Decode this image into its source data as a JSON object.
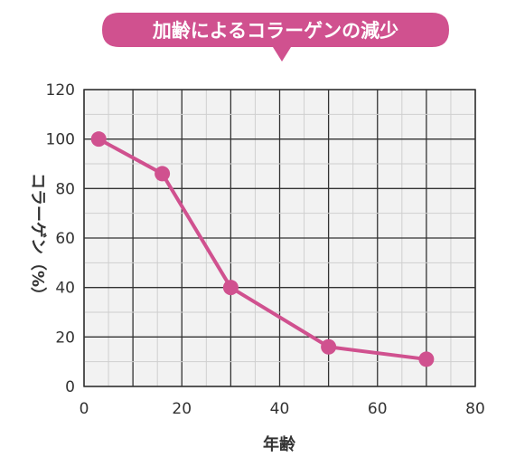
{
  "chart_data": {
    "type": "line",
    "title": "加齢によるコラーゲンの減少",
    "xlabel": "年齢",
    "ylabel": "コラーゲン（%）",
    "xlim": [
      0,
      80
    ],
    "ylim": [
      0,
      120
    ],
    "x_ticks": [
      "0",
      "20",
      "40",
      "60",
      "80"
    ],
    "y_ticks": [
      "0",
      "20",
      "40",
      "60",
      "80",
      "100",
      "120"
    ],
    "grid": true,
    "colors": {
      "line": "#d0518f",
      "marker": "#d0518f",
      "title_bg": "#d0518f",
      "grid_minor": "#cfcfcf",
      "grid_major": "#333333",
      "plot_bg": "#f2f2f2"
    },
    "series": [
      {
        "x": [
          3,
          16,
          30,
          50,
          70
        ],
        "y": [
          100,
          86,
          40,
          16,
          11
        ]
      }
    ]
  }
}
